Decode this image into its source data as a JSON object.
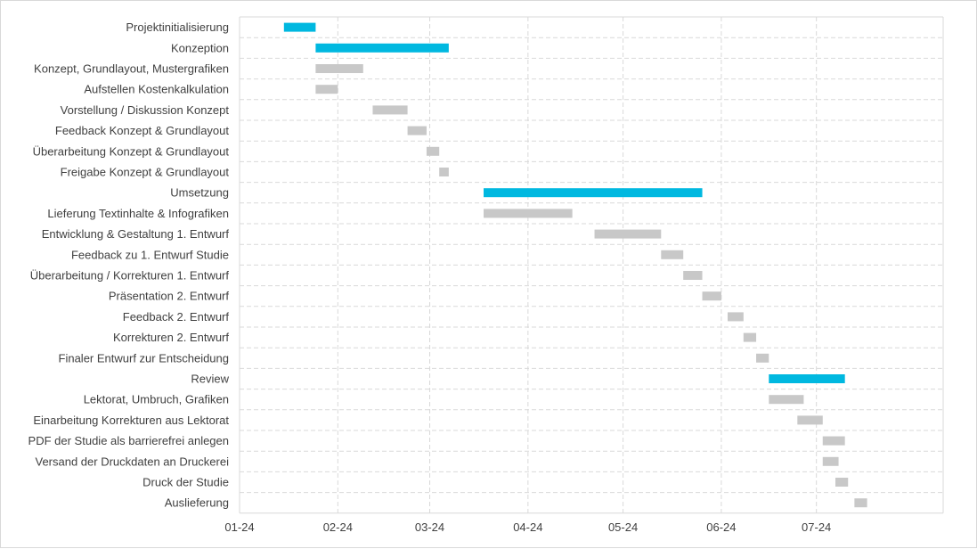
{
  "chart_data": {
    "type": "bar",
    "orientation": "horizontal",
    "subtype": "gantt",
    "title": "",
    "xlabel": "",
    "ylabel": "",
    "x_axis": {
      "ticks": [
        "01-24",
        "02-24",
        "03-24",
        "04-24",
        "05-24",
        "06-24",
        "07-24"
      ],
      "tick_dates": [
        "2024-01-01",
        "2024-02-01",
        "2024-03-01",
        "2024-04-01",
        "2024-05-01",
        "2024-06-01",
        "2024-07-01"
      ],
      "range": [
        "2024-01-01",
        "2024-08-10"
      ]
    },
    "grid": true,
    "legend": "none",
    "colors": {
      "phase": "#00b8e0",
      "task": "#c8c8c8",
      "grid": "#d9d9d9",
      "text": "#404040"
    },
    "tasks": [
      {
        "label": "Projektinitialisierung",
        "start": "2024-01-15",
        "end": "2024-01-25",
        "kind": "phase"
      },
      {
        "label": "Konzeption",
        "start": "2024-01-25",
        "end": "2024-03-07",
        "kind": "phase"
      },
      {
        "label": "Konzept, Grundlayout, Mustergrafiken",
        "start": "2024-01-25",
        "end": "2024-02-09",
        "kind": "task"
      },
      {
        "label": "Aufstellen Kostenkalkulation",
        "start": "2024-01-25",
        "end": "2024-02-01",
        "kind": "task"
      },
      {
        "label": "Vorstellung / Diskussion Konzept",
        "start": "2024-02-12",
        "end": "2024-02-23",
        "kind": "task"
      },
      {
        "label": "Feedback Konzept & Grundlayout",
        "start": "2024-02-23",
        "end": "2024-02-29",
        "kind": "task"
      },
      {
        "label": "Überarbeitung Konzept & Grundlayout",
        "start": "2024-02-29",
        "end": "2024-03-04",
        "kind": "task"
      },
      {
        "label": "Freigabe Konzept & Grundlayout",
        "start": "2024-03-04",
        "end": "2024-03-07",
        "kind": "task"
      },
      {
        "label": "Umsetzung",
        "start": "2024-03-18",
        "end": "2024-05-26",
        "kind": "phase"
      },
      {
        "label": "Lieferung Textinhalte & Infografiken ",
        "start": "2024-03-18",
        "end": "2024-04-15",
        "kind": "task"
      },
      {
        "label": "Entwicklung & Gestaltung 1. Entwurf",
        "start": "2024-04-22",
        "end": "2024-05-13",
        "kind": "task"
      },
      {
        "label": "Feedback zu 1. Entwurf Studie",
        "start": "2024-05-13",
        "end": "2024-05-20",
        "kind": "task"
      },
      {
        "label": "Überarbeitung / Korrekturen 1. Entwurf ",
        "start": "2024-05-20",
        "end": "2024-05-26",
        "kind": "task"
      },
      {
        "label": "Präsentation 2. Entwurf ",
        "start": "2024-05-26",
        "end": "2024-06-01",
        "kind": "task"
      },
      {
        "label": "Feedback 2. Entwurf ",
        "start": "2024-06-03",
        "end": "2024-06-08",
        "kind": "task"
      },
      {
        "label": "Korrekturen 2. Entwurf ",
        "start": "2024-06-08",
        "end": "2024-06-12",
        "kind": "task"
      },
      {
        "label": "Finaler Entwurf zur Entscheidung",
        "start": "2024-06-12",
        "end": "2024-06-16",
        "kind": "task"
      },
      {
        "label": "Review",
        "start": "2024-06-16",
        "end": "2024-07-10",
        "kind": "phase"
      },
      {
        "label": "Lektorat, Umbruch, Grafiken",
        "start": "2024-06-16",
        "end": "2024-06-27",
        "kind": "task"
      },
      {
        "label": "Einarbeitung Korrekturen aus Lektorat",
        "start": "2024-06-25",
        "end": "2024-07-03",
        "kind": "task"
      },
      {
        "label": "PDF der Studie als barrierefrei anlegen ",
        "start": "2024-07-03",
        "end": "2024-07-10",
        "kind": "task"
      },
      {
        "label": "Versand der Druckdaten an Druckerei ",
        "start": "2024-07-03",
        "end": "2024-07-08",
        "kind": "task"
      },
      {
        "label": "Druck der Studie ",
        "start": "2024-07-07",
        "end": "2024-07-11",
        "kind": "task"
      },
      {
        "label": "Auslieferung",
        "start": "2024-07-13",
        "end": "2024-07-17",
        "kind": "task"
      }
    ]
  }
}
